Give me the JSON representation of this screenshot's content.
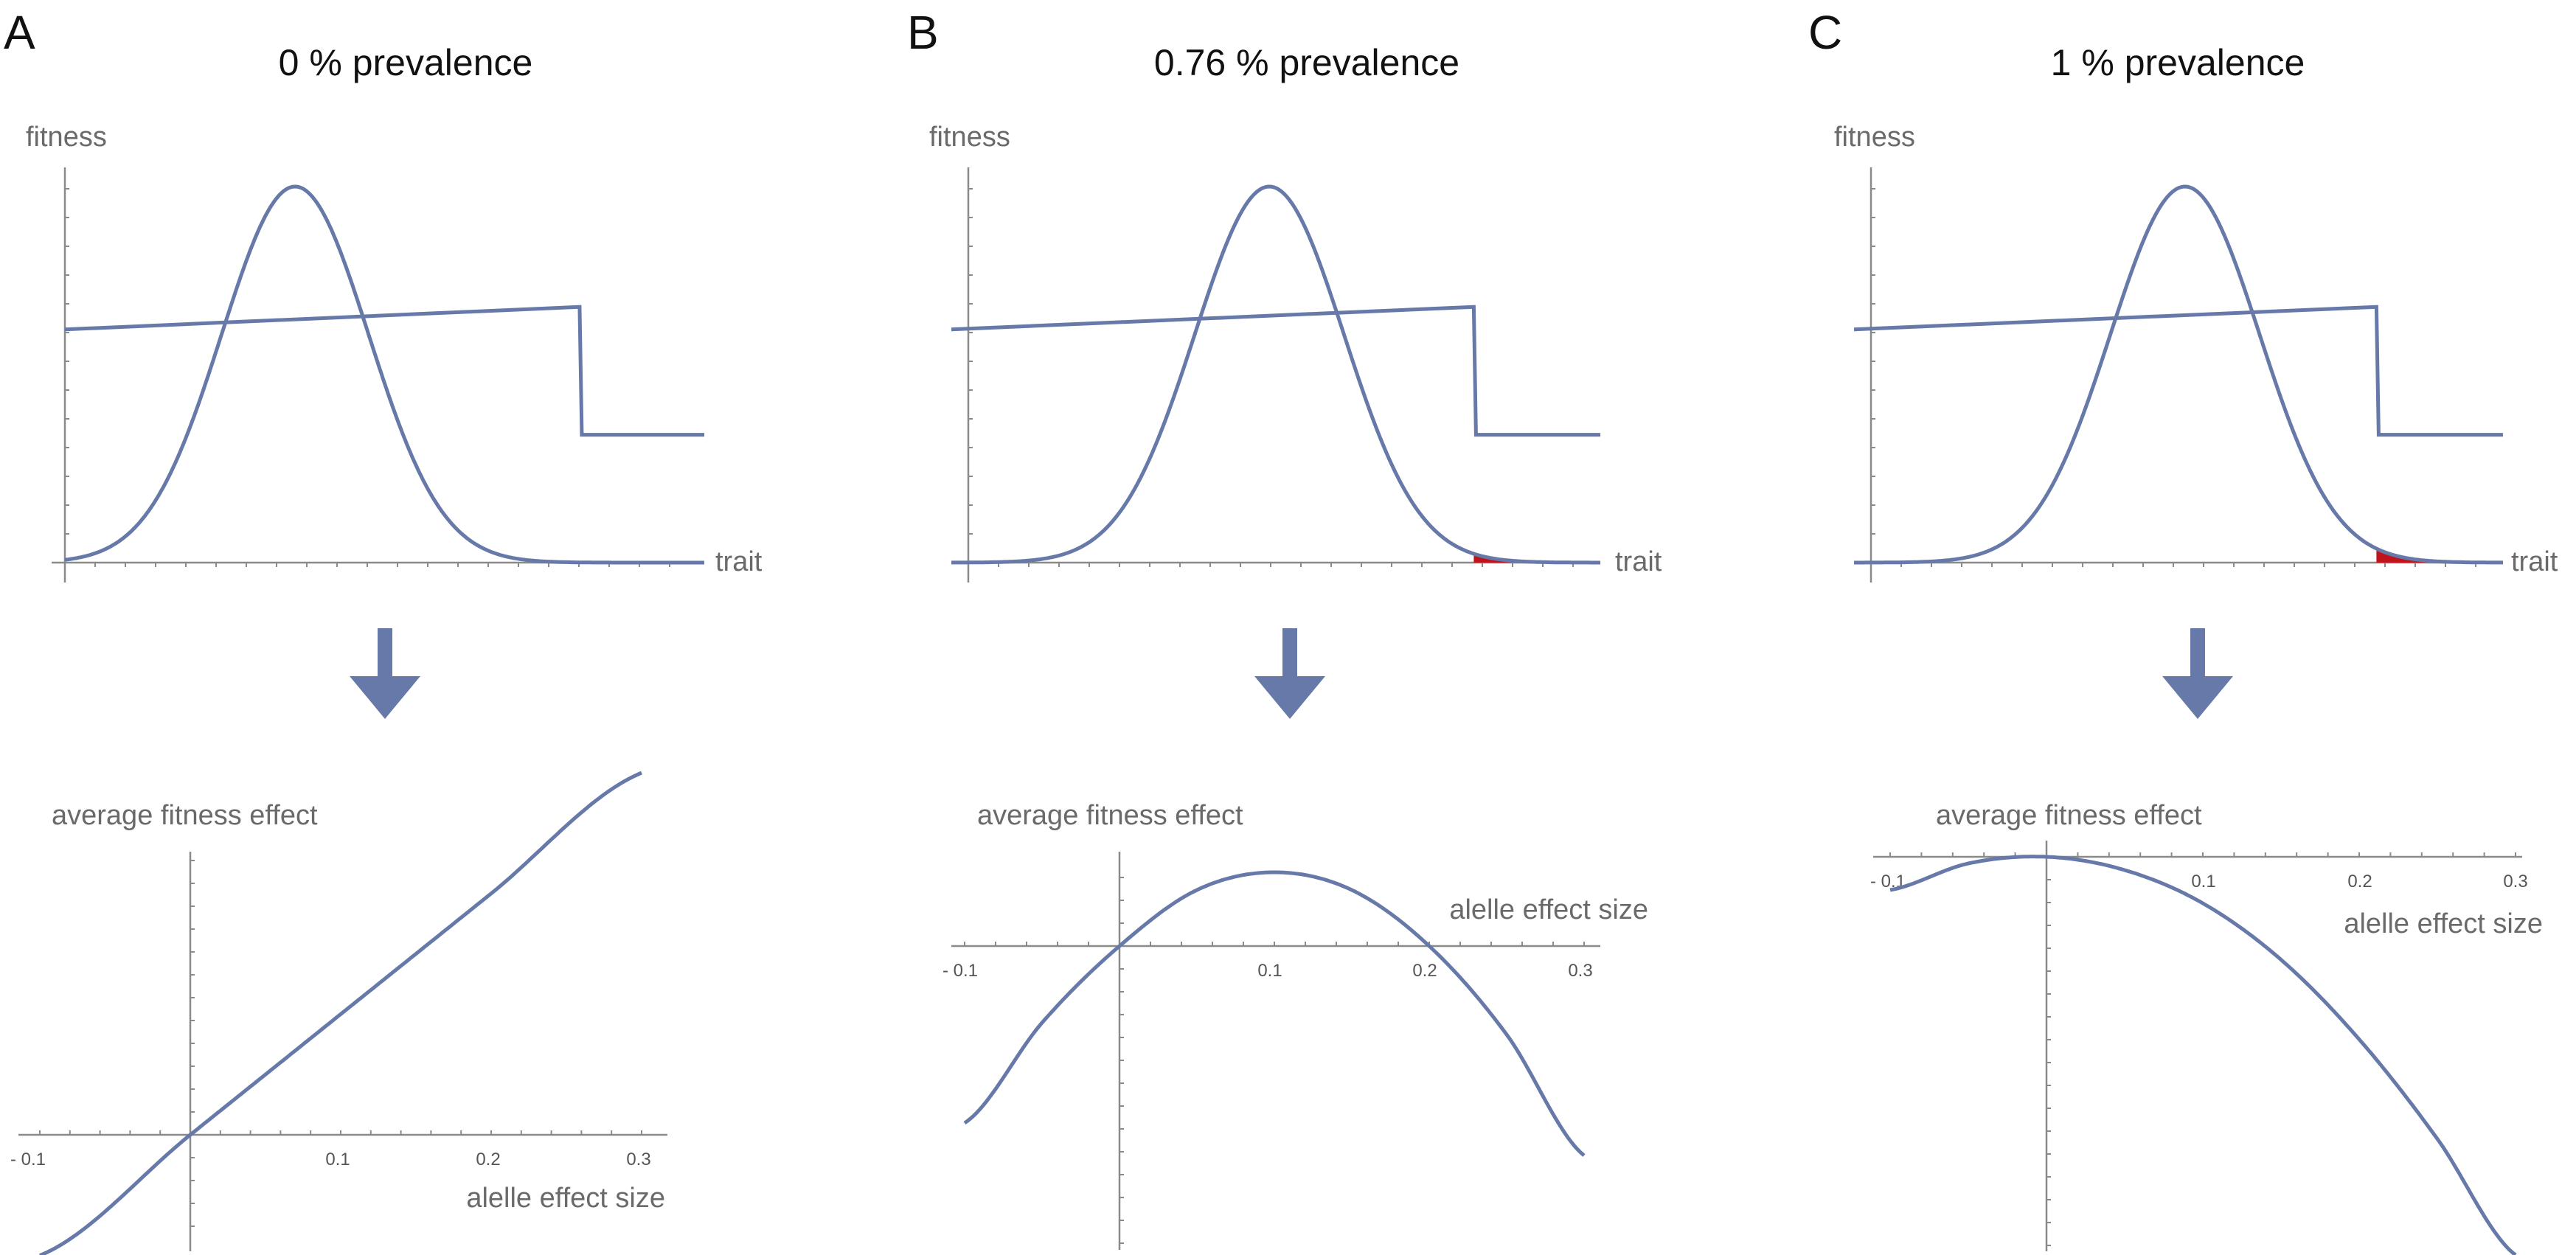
{
  "colors": {
    "curve": "#6679a8",
    "axis": "#8a8a8a",
    "shade": "#c0141c",
    "arrow": "#6679a8",
    "text": "#111111",
    "label": "#6a6a6a"
  },
  "panels": [
    {
      "letter": "A",
      "title": "0 % prevalence",
      "prevalence_percent": 0,
      "top": {
        "ylabel": "fitness",
        "xlabel": "trait"
      },
      "bottom": {
        "ylabel": "average fitness effect",
        "xlabel": "alelle effect size",
        "ticks": [
          "- 0.1",
          "0.1",
          "0.2",
          "0.3"
        ]
      }
    },
    {
      "letter": "B",
      "title": "0.76 % prevalence",
      "prevalence_percent": 0.76,
      "top": {
        "ylabel": "fitness",
        "xlabel": "trait"
      },
      "bottom": {
        "ylabel": "average fitness effect",
        "xlabel": "alelle effect size",
        "ticks": [
          "- 0.1",
          "0.1",
          "0.2",
          "0.3"
        ]
      }
    },
    {
      "letter": "C",
      "title": "1 % prevalence",
      "prevalence_percent": 1,
      "top": {
        "ylabel": "fitness",
        "xlabel": "trait"
      },
      "bottom": {
        "ylabel": "average fitness effect",
        "xlabel": "alelle effect size",
        "ticks": [
          "- 0.1",
          "0.1",
          "0.2",
          "0.3"
        ]
      }
    }
  ],
  "chart_data": [
    {
      "panel": "A",
      "type": "line",
      "role": "trait distribution and fitness function",
      "xlabel": "trait",
      "ylabel": "fitness",
      "xlim": [
        0,
        1
      ],
      "ylim": [
        0,
        1
      ],
      "grid": false,
      "gaussian": {
        "mean": 0.36,
        "sd": 0.115,
        "peak": 1.0
      },
      "fitness_function": {
        "start": [
          0,
          0.62
        ],
        "kink": [
          0.805,
          0.68
        ],
        "drop_to": 0.34,
        "end": [
          1.0,
          0.34
        ]
      },
      "shaded_tail_from": 0.805,
      "shaded_tail_visible": false
    },
    {
      "panel": "A",
      "type": "line",
      "role": "average fitness effect vs allele effect size",
      "xlabel": "alelle effect size",
      "ylabel": "average fitness effect",
      "xlim": [
        -0.1,
        0.3
      ],
      "grid": false,
      "series": [
        {
          "x": [
            -0.1,
            0.0,
            0.1,
            0.2,
            0.3
          ],
          "y": [
            -0.55,
            0.0,
            0.55,
            1.1,
            1.65
          ]
        }
      ]
    },
    {
      "panel": "B",
      "type": "line",
      "role": "trait distribution and fitness function",
      "xlabel": "trait",
      "ylabel": "fitness",
      "xlim": [
        0,
        1
      ],
      "ylim": [
        0,
        1
      ],
      "grid": false,
      "gaussian": {
        "mean": 0.49,
        "sd": 0.115,
        "peak": 1.0
      },
      "fitness_function": {
        "start": [
          0,
          0.62
        ],
        "kink": [
          0.805,
          0.68
        ],
        "drop_to": 0.34,
        "end": [
          1.0,
          0.34
        ]
      },
      "shaded_tail_from": 0.805,
      "shaded_tail_visible": true
    },
    {
      "panel": "B",
      "type": "line",
      "role": "average fitness effect vs allele effect size",
      "xlabel": "alelle effect size",
      "ylabel": "average fitness effect",
      "xlim": [
        -0.1,
        0.3
      ],
      "grid": false,
      "series": [
        {
          "x": [
            -0.1,
            -0.05,
            0.0,
            0.05,
            0.1,
            0.15,
            0.2,
            0.25,
            0.3
          ],
          "y": [
            -0.6,
            -0.26,
            0.0,
            0.19,
            0.25,
            0.19,
            0.0,
            -0.3,
            -0.71
          ]
        }
      ]
    },
    {
      "panel": "C",
      "type": "line",
      "role": "trait distribution and fitness function",
      "xlabel": "trait",
      "ylabel": "fitness",
      "xlim": [
        0,
        1
      ],
      "ylim": [
        0,
        1
      ],
      "grid": false,
      "gaussian": {
        "mean": 0.51,
        "sd": 0.115,
        "peak": 1.0
      },
      "fitness_function": {
        "start": [
          0,
          0.62
        ],
        "kink": [
          0.805,
          0.68
        ],
        "drop_to": 0.34,
        "end": [
          1.0,
          0.34
        ]
      },
      "shaded_tail_from": 0.805,
      "shaded_tail_visible": true
    },
    {
      "panel": "C",
      "type": "line",
      "role": "average fitness effect vs allele effect size",
      "xlabel": "alelle effect size",
      "ylabel": "average fitness effect",
      "xlim": [
        -0.1,
        0.3
      ],
      "grid": false,
      "series": [
        {
          "x": [
            -0.1,
            -0.05,
            0.0,
            0.05,
            0.1,
            0.15,
            0.2,
            0.25,
            0.3
          ],
          "y": [
            -0.1,
            -0.02,
            0.0,
            -0.04,
            -0.14,
            -0.31,
            -0.55,
            -0.85,
            -1.2
          ]
        }
      ]
    }
  ]
}
